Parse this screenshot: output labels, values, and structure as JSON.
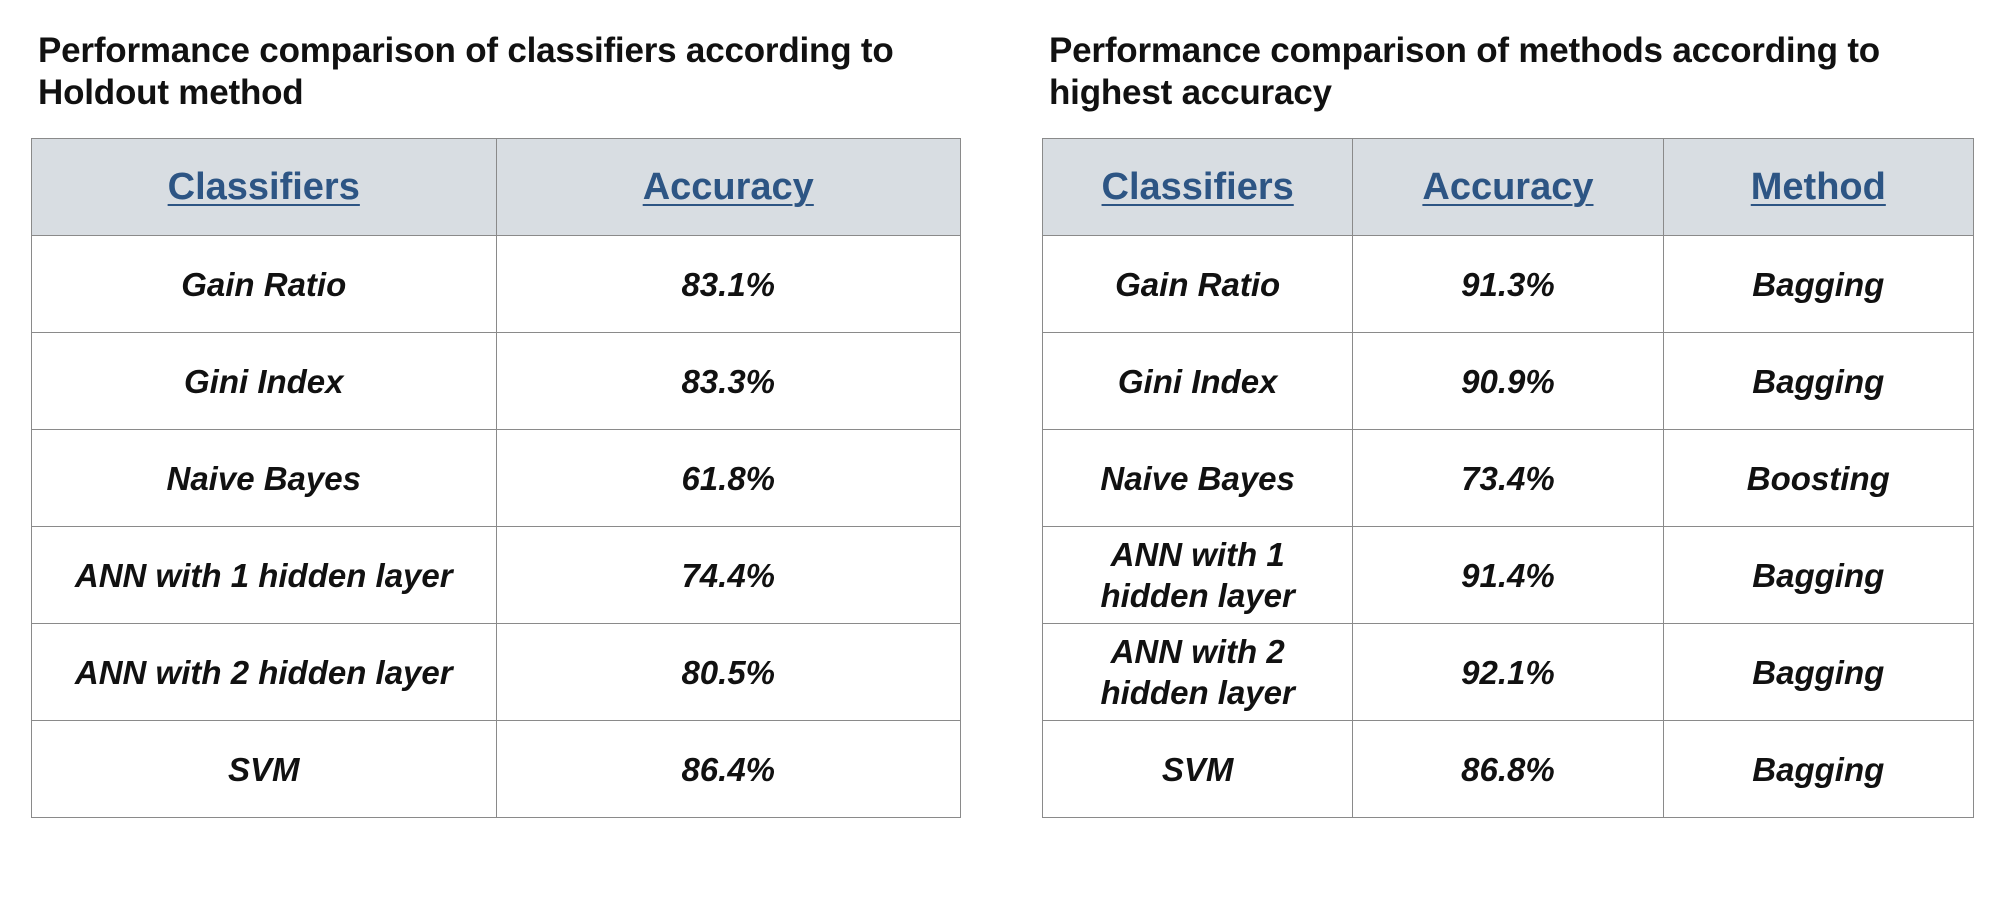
{
  "chart_data": [
    {
      "type": "table",
      "title": "Performance comparison of classifiers according to Holdout method",
      "columns": [
        "Classifiers",
        "Accuracy"
      ],
      "rows": [
        {
          "classifier": "Gain Ratio",
          "accuracy": "83.1%"
        },
        {
          "classifier": "Gini Index",
          "accuracy": "83.3%"
        },
        {
          "classifier": "Naive Bayes",
          "accuracy": "61.8%"
        },
        {
          "classifier": "ANN with 1 hidden layer",
          "accuracy": "74.4%"
        },
        {
          "classifier": "ANN with 2 hidden layer",
          "accuracy": "80.5%"
        },
        {
          "classifier": "SVM",
          "accuracy": "86.4%"
        }
      ]
    },
    {
      "type": "table",
      "title": "Performance comparison of methods according to highest accuracy",
      "columns": [
        "Classifiers",
        "Accuracy",
        "Method"
      ],
      "rows": [
        {
          "classifier": "Gain Ratio",
          "accuracy": "91.3%",
          "method": "Bagging"
        },
        {
          "classifier": "Gini Index",
          "accuracy": "90.9%",
          "method": "Bagging"
        },
        {
          "classifier": "Naive Bayes",
          "accuracy": "73.4%",
          "method": "Boosting"
        },
        {
          "classifier": "ANN with 1 hidden layer",
          "accuracy": "91.4%",
          "method": "Bagging"
        },
        {
          "classifier": "ANN with 2 hidden layer",
          "accuracy": "92.1%",
          "method": "Bagging"
        },
        {
          "classifier": "SVM",
          "accuracy": "86.8%",
          "method": "Bagging"
        }
      ]
    }
  ],
  "colors": {
    "header_bg": "#d8dde2",
    "header_text": "#2d5584",
    "border": "#8a8a8a"
  }
}
